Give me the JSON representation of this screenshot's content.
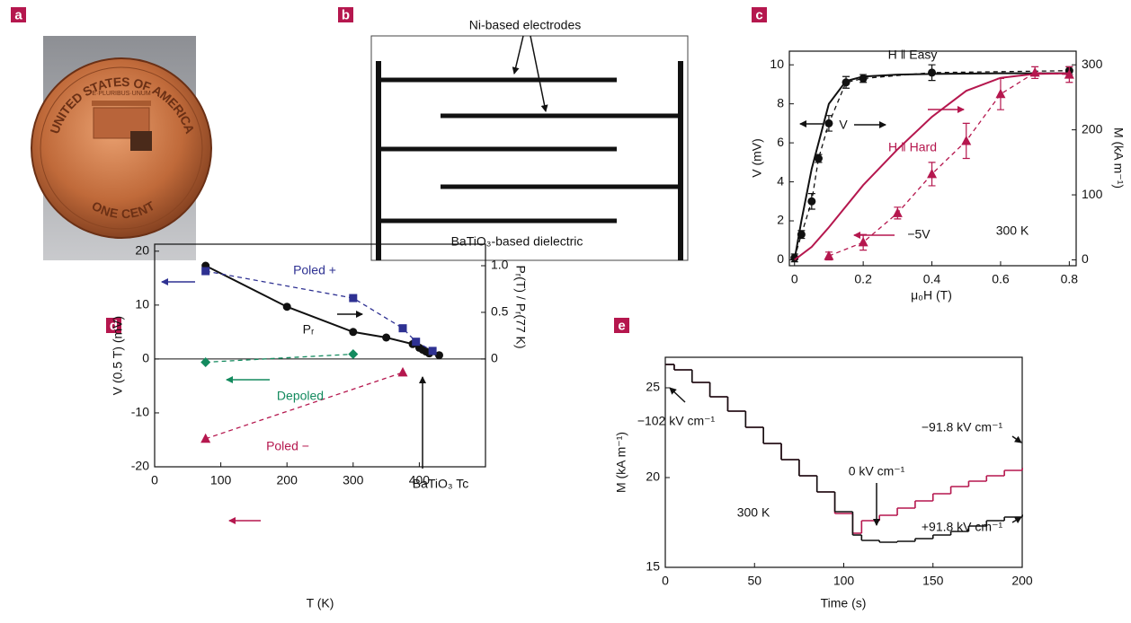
{
  "panel_labels": [
    "a",
    "b",
    "c",
    "d",
    "e"
  ],
  "photo": {
    "coin_text": [
      "UNITED STATES OF AMERICA",
      "E·PLURIBUS·UNUM",
      "ONE CENT"
    ]
  },
  "diagram": {
    "electrodes_label": "Ni-based electrodes",
    "dielectric_label": "BaTiO₃-based  dielectric"
  },
  "chart_data": [
    {
      "type": "line",
      "xlabel": "μ₀H (T)",
      "ylabel": "V (mV)",
      "y2label": "M (kA m⁻¹)",
      "xlim": [
        -0.015,
        0.82
      ],
      "xticks": [
        0,
        0.2,
        0.4,
        0.6,
        0.8
      ],
      "ylim": [
        -0.3,
        10.7
      ],
      "yticks": [
        0,
        2,
        4,
        6,
        8,
        10
      ],
      "y2lim": [
        -9,
        321
      ],
      "y2ticks": [
        0,
        100,
        200,
        300
      ],
      "annotations": [
        "H ‖ Easy",
        "V",
        "H ‖ Hard",
        "−5V",
        "300 K"
      ],
      "series": [
        {
          "color": "#111111",
          "axis": "y2",
          "x": [
            0,
            0.02,
            0.05,
            0.08,
            0.1,
            0.15,
            0.2,
            0.3,
            0.4,
            0.6,
            0.8
          ],
          "values": [
            0,
            60,
            140,
            200,
            240,
            275,
            282,
            285,
            286,
            287,
            287
          ]
        },
        {
          "color": "#111111",
          "dash": true,
          "marker": "circle",
          "x": [
            0,
            0.02,
            0.05,
            0.07,
            0.1,
            0.15,
            0.2,
            0.4,
            0.8
          ],
          "values": [
            0.1,
            1.3,
            3.0,
            5.2,
            7.0,
            9.1,
            9.3,
            9.6,
            9.7
          ],
          "errors": [
            0.2,
            0.2,
            0.4,
            0.2,
            0.4,
            0.3,
            0.2,
            0.4,
            0.2
          ]
        },
        {
          "color": "#b5174e",
          "axis": "y2",
          "x": [
            0,
            0.05,
            0.1,
            0.2,
            0.3,
            0.4,
            0.5,
            0.6,
            0.7,
            0.8
          ],
          "values": [
            0,
            20,
            50,
            115,
            170,
            220,
            260,
            280,
            286,
            287
          ]
        },
        {
          "color": "#b5174e",
          "dash": true,
          "marker": "triangle",
          "x": [
            0.1,
            0.2,
            0.3,
            0.4,
            0.5,
            0.6,
            0.7,
            0.8
          ],
          "values": [
            0.2,
            0.9,
            2.4,
            4.4,
            6.1,
            8.5,
            9.6,
            9.5
          ],
          "errors": [
            0.2,
            0.4,
            0.3,
            0.6,
            0.9,
            0.8,
            0.3,
            0.4
          ]
        }
      ]
    },
    {
      "type": "line",
      "xlabel": "T (K)",
      "ylabel": "V (0.5 T) (mV)",
      "y2label": "Pᵣ(T) / Pᵣ(77 K)",
      "xlim": [
        0,
        500
      ],
      "xticks": [
        0,
        100,
        200,
        300,
        400
      ],
      "ylim": [
        -20,
        21.3
      ],
      "yticks": [
        -20,
        -10,
        0,
        10,
        20
      ],
      "y2lim": [
        -1.156,
        1.231
      ],
      "y2ticks": [
        0,
        0.5,
        {
          "value": 1,
          "label": "1.0"
        }
      ],
      "zero_line": true,
      "annotations": [
        "Poled +",
        "Pᵣ",
        "Depoled",
        "Poled −",
        "BaTiO₃ Tc"
      ],
      "series": [
        {
          "color": "#111111",
          "axis": "y2",
          "marker": "circle",
          "x": [
            77,
            200,
            300,
            350,
            390,
            400,
            405,
            410,
            415,
            430
          ],
          "values": [
            1.0,
            0.56,
            0.29,
            0.23,
            0.16,
            0.12,
            0.1,
            0.08,
            0.06,
            0.04
          ]
        },
        {
          "color": "#2e3192",
          "dash": true,
          "marker": "square",
          "x": [
            77,
            300,
            375,
            395,
            420
          ],
          "values": [
            16.3,
            11.3,
            5.7,
            3.2,
            1.5
          ]
        },
        {
          "color": "#138a5e",
          "dash": true,
          "marker": "diamond",
          "x": [
            77,
            300
          ],
          "values": [
            -0.6,
            0.9
          ]
        },
        {
          "color": "#b5174e",
          "dash": true,
          "marker": "triangle",
          "x": [
            77,
            375
          ],
          "values": [
            -14.8,
            -2.5
          ]
        }
      ]
    },
    {
      "type": "line",
      "xlabel": "Time (s)",
      "ylabel": "M (kA m⁻¹)",
      "xlim": [
        0,
        200
      ],
      "xticks": [
        0,
        50,
        100,
        150,
        200
      ],
      "ylim": [
        15,
        26.7
      ],
      "yticks": [
        15,
        20,
        25
      ],
      "annotations": [
        "−102 kV cm⁻¹",
        "0 kV cm⁻¹",
        "−91.8 kV cm⁻¹",
        "+91.8 kV cm⁻¹",
        "300 K"
      ],
      "series": [
        {
          "color": "#b5174e",
          "step": true,
          "x": [
            0,
            5,
            15,
            25,
            35,
            45,
            55,
            65,
            75,
            85,
            95,
            105,
            110,
            120,
            130,
            140,
            150,
            160,
            170,
            180,
            190,
            200
          ],
          "values": [
            26.3,
            26.0,
            25.3,
            24.5,
            23.7,
            22.8,
            21.9,
            21.0,
            20.1,
            19.2,
            18.0,
            16.9,
            17.6,
            17.9,
            18.3,
            18.7,
            19.1,
            19.5,
            19.8,
            20.1,
            20.4,
            20.5
          ]
        },
        {
          "color": "#111111",
          "step": true,
          "x": [
            0,
            5,
            15,
            25,
            35,
            45,
            55,
            65,
            75,
            85,
            95,
            105,
            110,
            120,
            130,
            140,
            150,
            160,
            170,
            180,
            190,
            200
          ],
          "values": [
            26.3,
            26.0,
            25.3,
            24.5,
            23.7,
            22.8,
            21.9,
            21.0,
            20.1,
            19.2,
            18.1,
            16.8,
            16.5,
            16.4,
            16.45,
            16.6,
            16.8,
            17.0,
            17.3,
            17.6,
            17.8,
            17.9
          ]
        }
      ]
    }
  ]
}
